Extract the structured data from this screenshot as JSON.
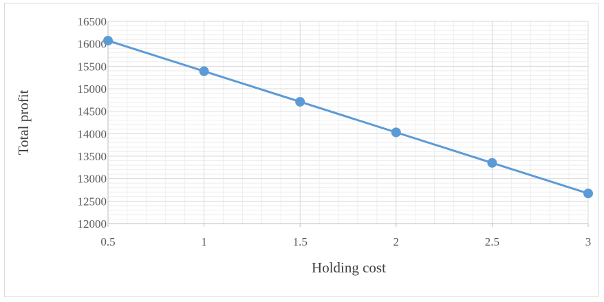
{
  "chart_data": {
    "type": "line",
    "xlabel": "Holding cost",
    "ylabel": "Total profit",
    "x": [
      0.5,
      1,
      1.5,
      2,
      2.5,
      3
    ],
    "x_tick_labels": [
      "0.5",
      "1",
      "1.5",
      "2",
      "2.5",
      "3"
    ],
    "y_tick_labels": [
      "12000",
      "12500",
      "13000",
      "13500",
      "14000",
      "14500",
      "15000",
      "15500",
      "16000",
      "16500"
    ],
    "series": [
      {
        "values": [
          16070,
          15390,
          14710,
          14030,
          13350,
          12670
        ]
      }
    ],
    "xlim": [
      0.5,
      3
    ],
    "ylim": [
      12000,
      16500
    ],
    "y_major_step": 500,
    "minor_gridlines": true,
    "grid": true,
    "legend": "none",
    "colors": {
      "series": "#5b9bd5",
      "major_grid": "#d9d9d9",
      "minor_grid": "#eeeeee",
      "axis": "#bfbfbf"
    }
  }
}
